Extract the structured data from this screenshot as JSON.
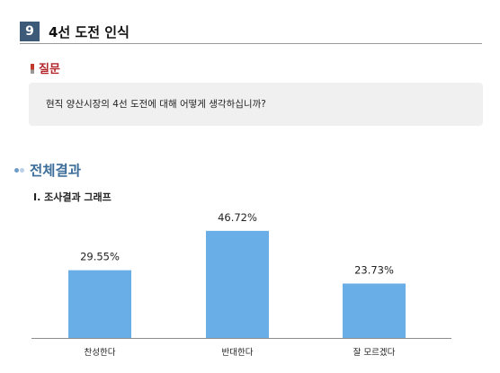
{
  "section": {
    "number": "9",
    "title": "4선 도전 인식"
  },
  "question": {
    "label": "질문",
    "text": "현직 양산시장의 4선 도전에 대해 어떻게 생각하십니까?"
  },
  "results": {
    "heading": "전체결과",
    "subheading": "I.  조사결과 그래프"
  },
  "colors": {
    "bar": "#6aaee8",
    "section_box": "#3d5a78",
    "question_label": "#b2262b",
    "heading": "#3d6e9a"
  },
  "chart_data": {
    "type": "bar",
    "categories": [
      "찬성한다",
      "반대한다",
      "잘 모르겠다"
    ],
    "values": [
      29.55,
      46.72,
      23.73
    ],
    "data_labels": [
      "29.55%",
      "46.72%",
      "23.73%"
    ],
    "ylim": [
      0,
      60
    ],
    "grid": false
  }
}
